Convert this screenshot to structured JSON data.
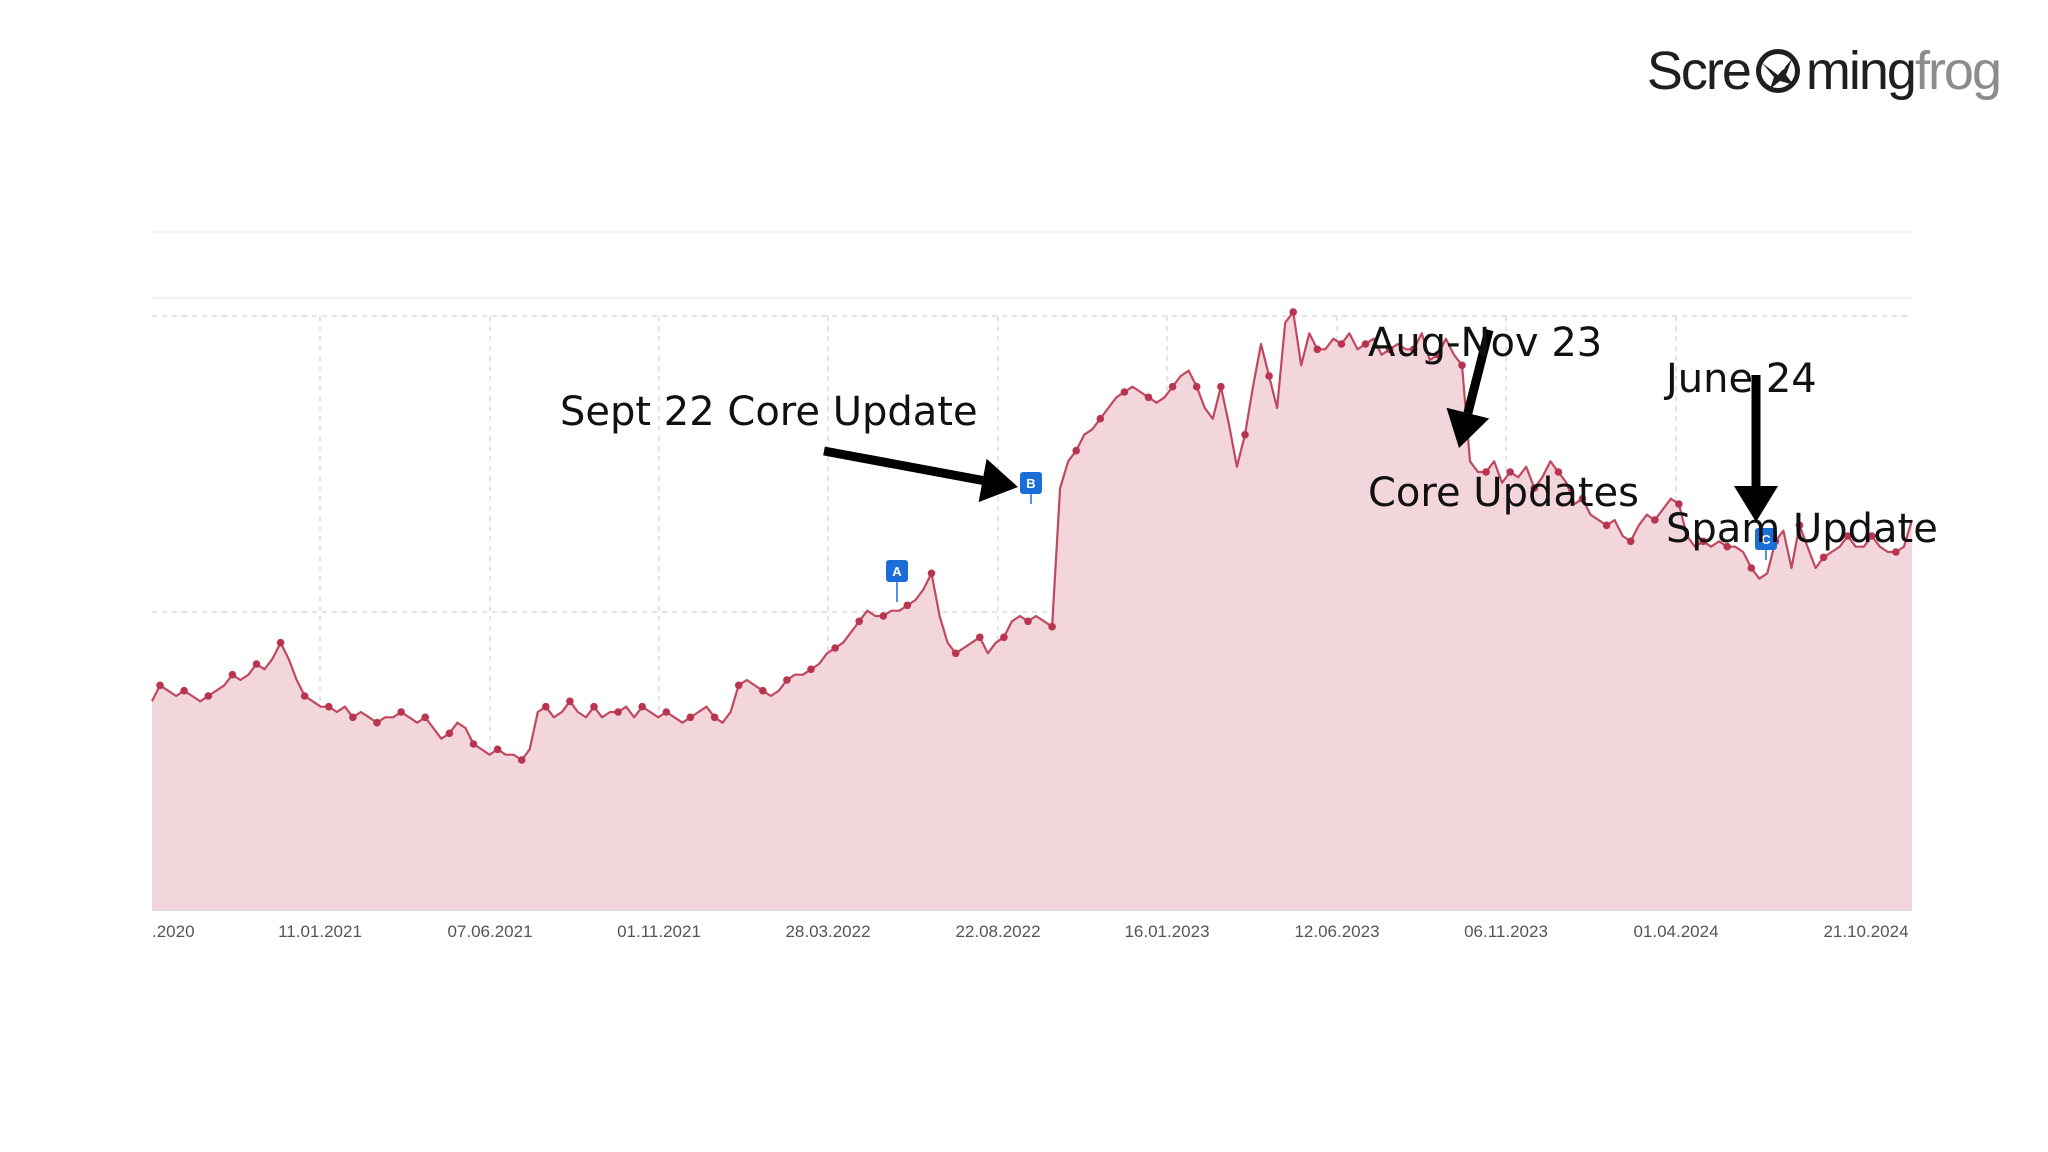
{
  "brand": {
    "part_a": "Scre",
    "part_b": "ming",
    "part_c": "frog",
    "icon": "frog-logo-icon"
  },
  "chart_data": {
    "type": "area",
    "title": "",
    "xlabel": "",
    "ylabel": "",
    "x_ticks": [
      ".2020",
      "11.01.2021",
      "07.06.2021",
      "01.11.2021",
      "28.03.2022",
      "22.08.2022",
      "16.01.2023",
      "12.06.2023",
      "06.11.2023",
      "01.04.2024",
      "21.10.2024"
    ],
    "y_axis_labels_visible": false,
    "grid": true,
    "colors": {
      "line": "#c0485f",
      "fill": "#f3d6dc",
      "point": "#b8344f",
      "marker": "#1a6ed8",
      "grid": "#dcdcdc"
    },
    "series": [
      {
        "values": [
          0.27,
          0.3,
          0.29,
          0.28,
          0.29,
          0.28,
          0.27,
          0.28,
          0.29,
          0.3,
          0.32,
          0.31,
          0.32,
          0.34,
          0.33,
          0.35,
          0.38,
          0.35,
          0.31,
          0.28,
          0.27,
          0.26,
          0.26,
          0.25,
          0.26,
          0.24,
          0.25,
          0.24,
          0.23,
          0.24,
          0.24,
          0.25,
          0.24,
          0.23,
          0.24,
          0.22,
          0.2,
          0.21,
          0.23,
          0.22,
          0.19,
          0.18,
          0.17,
          0.18,
          0.17,
          0.17,
          0.16,
          0.18,
          0.25,
          0.26,
          0.24,
          0.25,
          0.27,
          0.25,
          0.24,
          0.26,
          0.24,
          0.25,
          0.25,
          0.26,
          0.24,
          0.26,
          0.25,
          0.24,
          0.25,
          0.24,
          0.23,
          0.24,
          0.25,
          0.26,
          0.24,
          0.23,
          0.25,
          0.3,
          0.31,
          0.3,
          0.29,
          0.28,
          0.29,
          0.31,
          0.32,
          0.32,
          0.33,
          0.34,
          0.36,
          0.37,
          0.38,
          0.4,
          0.42,
          0.44,
          0.43,
          0.43,
          0.44,
          0.44,
          0.45,
          0.46,
          0.48,
          0.51,
          0.43,
          0.38,
          0.36,
          0.37,
          0.38,
          0.39,
          0.36,
          0.38,
          0.39,
          0.42,
          0.43,
          0.42,
          0.43,
          0.42,
          0.41,
          0.67,
          0.72,
          0.74,
          0.77,
          0.78,
          0.8,
          0.82,
          0.84,
          0.85,
          0.86,
          0.85,
          0.84,
          0.83,
          0.84,
          0.86,
          0.88,
          0.89,
          0.86,
          0.82,
          0.8,
          0.86,
          0.79,
          0.71,
          0.77,
          0.86,
          0.94,
          0.88,
          0.82,
          0.98,
          1.0,
          0.9,
          0.96,
          0.93,
          0.93,
          0.95,
          0.94,
          0.96,
          0.93,
          0.94,
          0.95,
          0.92,
          0.93,
          0.94,
          0.93,
          0.93,
          0.96,
          0.91,
          0.92,
          0.95,
          0.92,
          0.9,
          0.72,
          0.7,
          0.7,
          0.72,
          0.68,
          0.7,
          0.69,
          0.71,
          0.67,
          0.69,
          0.72,
          0.7,
          0.68,
          0.64,
          0.65,
          0.62,
          0.61,
          0.6,
          0.61,
          0.58,
          0.57,
          0.6,
          0.62,
          0.61,
          0.63,
          0.65,
          0.64,
          0.58,
          0.56,
          0.57,
          0.56,
          0.57,
          0.56,
          0.56,
          0.55,
          0.52,
          0.5,
          0.51,
          0.57,
          0.59,
          0.52,
          0.6,
          0.56,
          0.52,
          0.54,
          0.55,
          0.56,
          0.58,
          0.56,
          0.56,
          0.58,
          0.56,
          0.55,
          0.55,
          0.56,
          0.61
        ]
      }
    ],
    "markers": [
      {
        "label": "A",
        "date": "2022-06"
      },
      {
        "label": "B",
        "date": "2022-09"
      },
      {
        "label": "C",
        "date": "2024-06"
      }
    ]
  },
  "annotations": {
    "sept22": "Sept 22 Core Update",
    "augnov_line1": "Aug-Nov 23",
    "augnov_line2": "Core Updates",
    "june24_line1": "June 24",
    "june24_line2": "Spam Update"
  }
}
